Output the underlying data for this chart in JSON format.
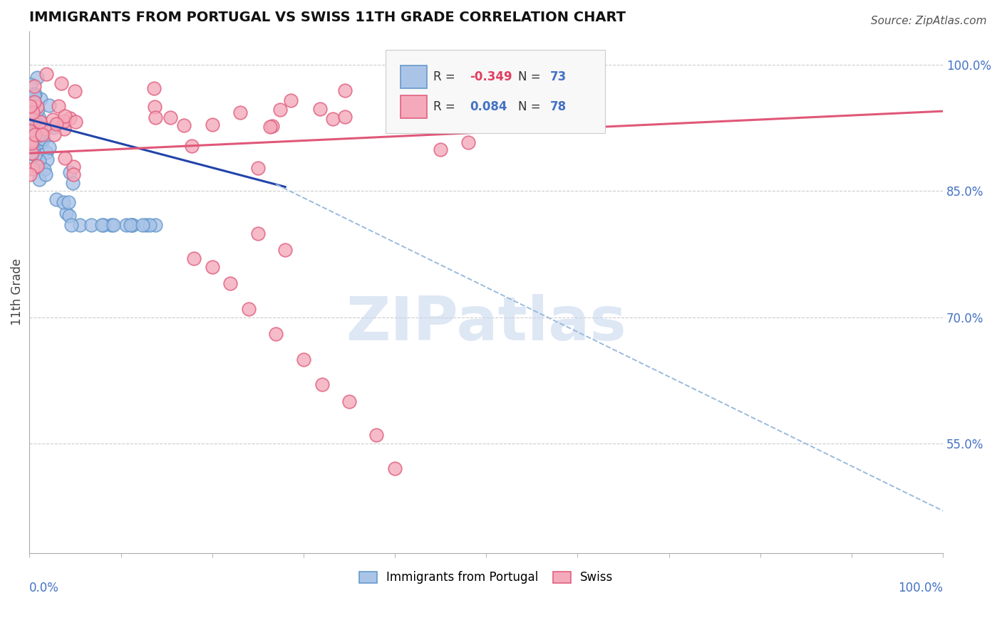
{
  "title": "IMMIGRANTS FROM PORTUGAL VS SWISS 11TH GRADE CORRELATION CHART",
  "source": "Source: ZipAtlas.com",
  "ylabel": "11th Grade",
  "y_tick_values": [
    1.0,
    0.85,
    0.7,
    0.55
  ],
  "y_tick_labels": [
    "100.0%",
    "85.0%",
    "70.0%",
    "55.0%"
  ],
  "xlim": [
    0.0,
    1.0
  ],
  "ylim": [
    0.42,
    1.04
  ],
  "background_color": "#ffffff",
  "grid_color": "#cccccc",
  "axis_label_color": "#4472c4",
  "blue_scatter_color_face": "#aac4e8",
  "blue_scatter_color_edge": "#6699cc",
  "pink_scatter_color_face": "#f4aabb",
  "pink_scatter_color_edge": "#e06080",
  "blue_line_color": "#2244aa",
  "blue_dash_color": "#99bbdd",
  "pink_line_color": "#e05878",
  "legend_r1": "-0.349",
  "legend_n1": "73",
  "legend_r2": "0.084",
  "legend_n2": "78",
  "legend_r_color": "#e04060",
  "legend_n_color": "#4472c4",
  "legend_text_color": "#333333",
  "watermark": "ZIPatlas",
  "watermark_color": "#c8d8ee",
  "title_fontsize": 14,
  "source_fontsize": 11,
  "label_blue": "Immigrants from Portugal",
  "label_pink": "Swiss"
}
